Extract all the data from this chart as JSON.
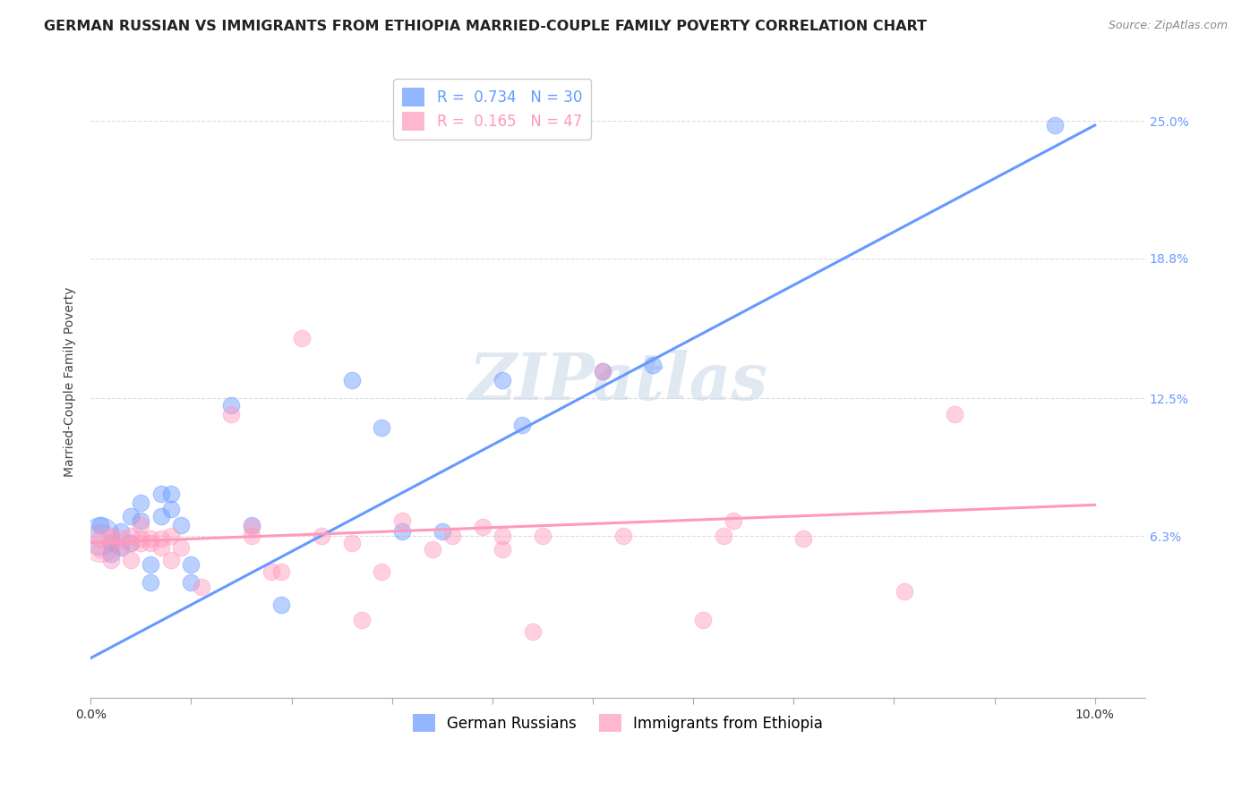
{
  "title": "GERMAN RUSSIAN VS IMMIGRANTS FROM ETHIOPIA MARRIED-COUPLE FAMILY POVERTY CORRELATION CHART",
  "source": "Source: ZipAtlas.com",
  "ylabel": "Married-Couple Family Poverty",
  "ytick_labels": [
    "6.3%",
    "12.5%",
    "18.8%",
    "25.0%"
  ],
  "ytick_values": [
    0.063,
    0.125,
    0.188,
    0.25
  ],
  "xlim": [
    0.0,
    0.105
  ],
  "ylim": [
    -0.01,
    0.275
  ],
  "blue_R": 0.734,
  "blue_N": 30,
  "pink_R": 0.165,
  "pink_N": 47,
  "blue_color": "#6699FF",
  "pink_color": "#FF99BB",
  "legend_blue_label": "German Russians",
  "legend_pink_label": "Immigrants from Ethiopia",
  "watermark": "ZIPatlas",
  "blue_scatter": [
    [
      0.001,
      0.068
    ],
    [
      0.002,
      0.06
    ],
    [
      0.002,
      0.055
    ],
    [
      0.003,
      0.065
    ],
    [
      0.003,
      0.058
    ],
    [
      0.004,
      0.06
    ],
    [
      0.004,
      0.072
    ],
    [
      0.005,
      0.078
    ],
    [
      0.005,
      0.07
    ],
    [
      0.006,
      0.05
    ],
    [
      0.006,
      0.042
    ],
    [
      0.007,
      0.082
    ],
    [
      0.007,
      0.072
    ],
    [
      0.008,
      0.075
    ],
    [
      0.008,
      0.082
    ],
    [
      0.009,
      0.068
    ],
    [
      0.01,
      0.05
    ],
    [
      0.01,
      0.042
    ],
    [
      0.014,
      0.122
    ],
    [
      0.016,
      0.068
    ],
    [
      0.019,
      0.032
    ],
    [
      0.026,
      0.133
    ],
    [
      0.029,
      0.112
    ],
    [
      0.031,
      0.065
    ],
    [
      0.035,
      0.065
    ],
    [
      0.041,
      0.133
    ],
    [
      0.043,
      0.113
    ],
    [
      0.051,
      0.137
    ],
    [
      0.056,
      0.14
    ],
    [
      0.096,
      0.248
    ]
  ],
  "pink_scatter": [
    [
      0.001,
      0.062
    ],
    [
      0.001,
      0.057
    ],
    [
      0.002,
      0.06
    ],
    [
      0.002,
      0.063
    ],
    [
      0.002,
      0.052
    ],
    [
      0.003,
      0.062
    ],
    [
      0.003,
      0.058
    ],
    [
      0.004,
      0.063
    ],
    [
      0.004,
      0.06
    ],
    [
      0.004,
      0.052
    ],
    [
      0.005,
      0.06
    ],
    [
      0.005,
      0.062
    ],
    [
      0.005,
      0.068
    ],
    [
      0.006,
      0.062
    ],
    [
      0.006,
      0.06
    ],
    [
      0.007,
      0.062
    ],
    [
      0.007,
      0.058
    ],
    [
      0.008,
      0.052
    ],
    [
      0.008,
      0.063
    ],
    [
      0.009,
      0.058
    ],
    [
      0.011,
      0.04
    ],
    [
      0.014,
      0.118
    ],
    [
      0.016,
      0.067
    ],
    [
      0.016,
      0.063
    ],
    [
      0.018,
      0.047
    ],
    [
      0.019,
      0.047
    ],
    [
      0.021,
      0.152
    ],
    [
      0.023,
      0.063
    ],
    [
      0.026,
      0.06
    ],
    [
      0.027,
      0.025
    ],
    [
      0.029,
      0.047
    ],
    [
      0.031,
      0.07
    ],
    [
      0.034,
      0.057
    ],
    [
      0.036,
      0.063
    ],
    [
      0.039,
      0.067
    ],
    [
      0.041,
      0.063
    ],
    [
      0.041,
      0.057
    ],
    [
      0.044,
      0.02
    ],
    [
      0.045,
      0.063
    ],
    [
      0.051,
      0.137
    ],
    [
      0.053,
      0.063
    ],
    [
      0.061,
      0.025
    ],
    [
      0.063,
      0.063
    ],
    [
      0.064,
      0.07
    ],
    [
      0.071,
      0.062
    ],
    [
      0.081,
      0.038
    ],
    [
      0.086,
      0.118
    ]
  ],
  "blue_line_x": [
    0.0,
    0.1
  ],
  "blue_line_y": [
    0.008,
    0.248
  ],
  "pink_line_x": [
    0.0,
    0.1
  ],
  "pink_line_y": [
    0.06,
    0.077
  ],
  "background_color": "#FFFFFF",
  "grid_color": "#DDDDDD",
  "title_fontsize": 11.5,
  "axis_label_fontsize": 10,
  "tick_fontsize": 10,
  "legend_fontsize": 12,
  "source_fontsize": 9,
  "bubble_size": 180,
  "large_bubble_size": 900
}
